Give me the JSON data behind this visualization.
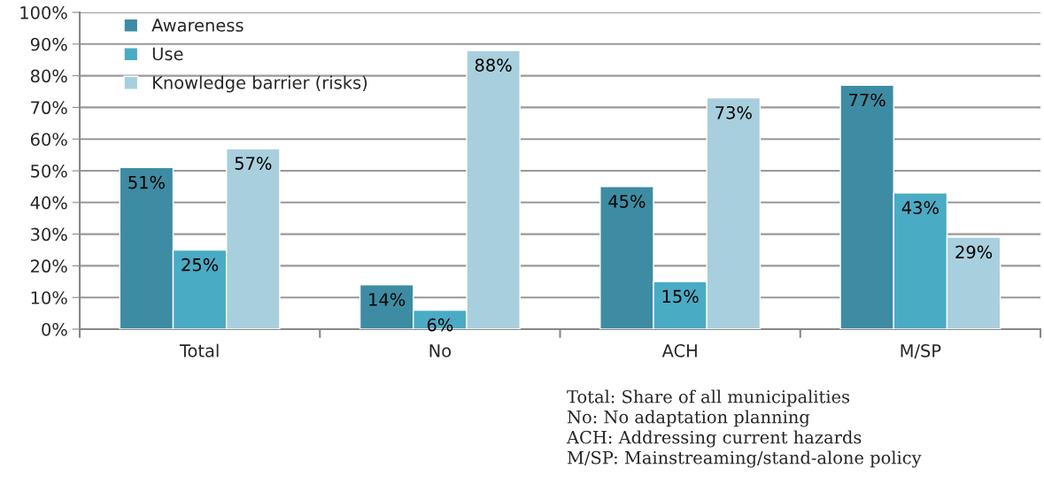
{
  "chart_data": {
    "type": "bar",
    "categories": [
      "Total",
      "No",
      "ACH",
      "M/SP"
    ],
    "series": [
      {
        "name": "Awareness",
        "color": "#3d8ca3",
        "values": [
          51,
          14,
          45,
          77
        ],
        "value_labels": [
          "51%",
          "14%",
          "45%",
          "77%"
        ]
      },
      {
        "name": "Use",
        "color": "#4aabc5",
        "values": [
          25,
          6,
          15,
          43
        ],
        "value_labels": [
          "25%",
          "6%",
          "15%",
          "43%"
        ]
      },
      {
        "name": "Knowledge barrier (risks)",
        "color": "#a8cfdd",
        "values": [
          57,
          88,
          73,
          29
        ],
        "value_labels": [
          "57%",
          "88%",
          "73%",
          "29%"
        ]
      }
    ],
    "ylim": [
      0,
      100
    ],
    "yticks": [
      {
        "value": 0,
        "label": "0%"
      },
      {
        "value": 10,
        "label": "10%"
      },
      {
        "value": 20,
        "label": "20%"
      },
      {
        "value": 30,
        "label": "30%"
      },
      {
        "value": 40,
        "label": "40%"
      },
      {
        "value": 50,
        "label": "50%"
      },
      {
        "value": 60,
        "label": "60%"
      },
      {
        "value": 70,
        "label": "70%"
      },
      {
        "value": 80,
        "label": "80%"
      },
      {
        "value": 90,
        "label": "90%"
      },
      {
        "value": 100,
        "label": "100%"
      }
    ],
    "grid": "y",
    "legend": "top left",
    "annotations": [
      "Total: Share of all municipalities",
      "No: No adaptation planning",
      "ACH: Addressing current hazards",
      "M/SP: Mainstreaming/stand-alone policy"
    ]
  }
}
